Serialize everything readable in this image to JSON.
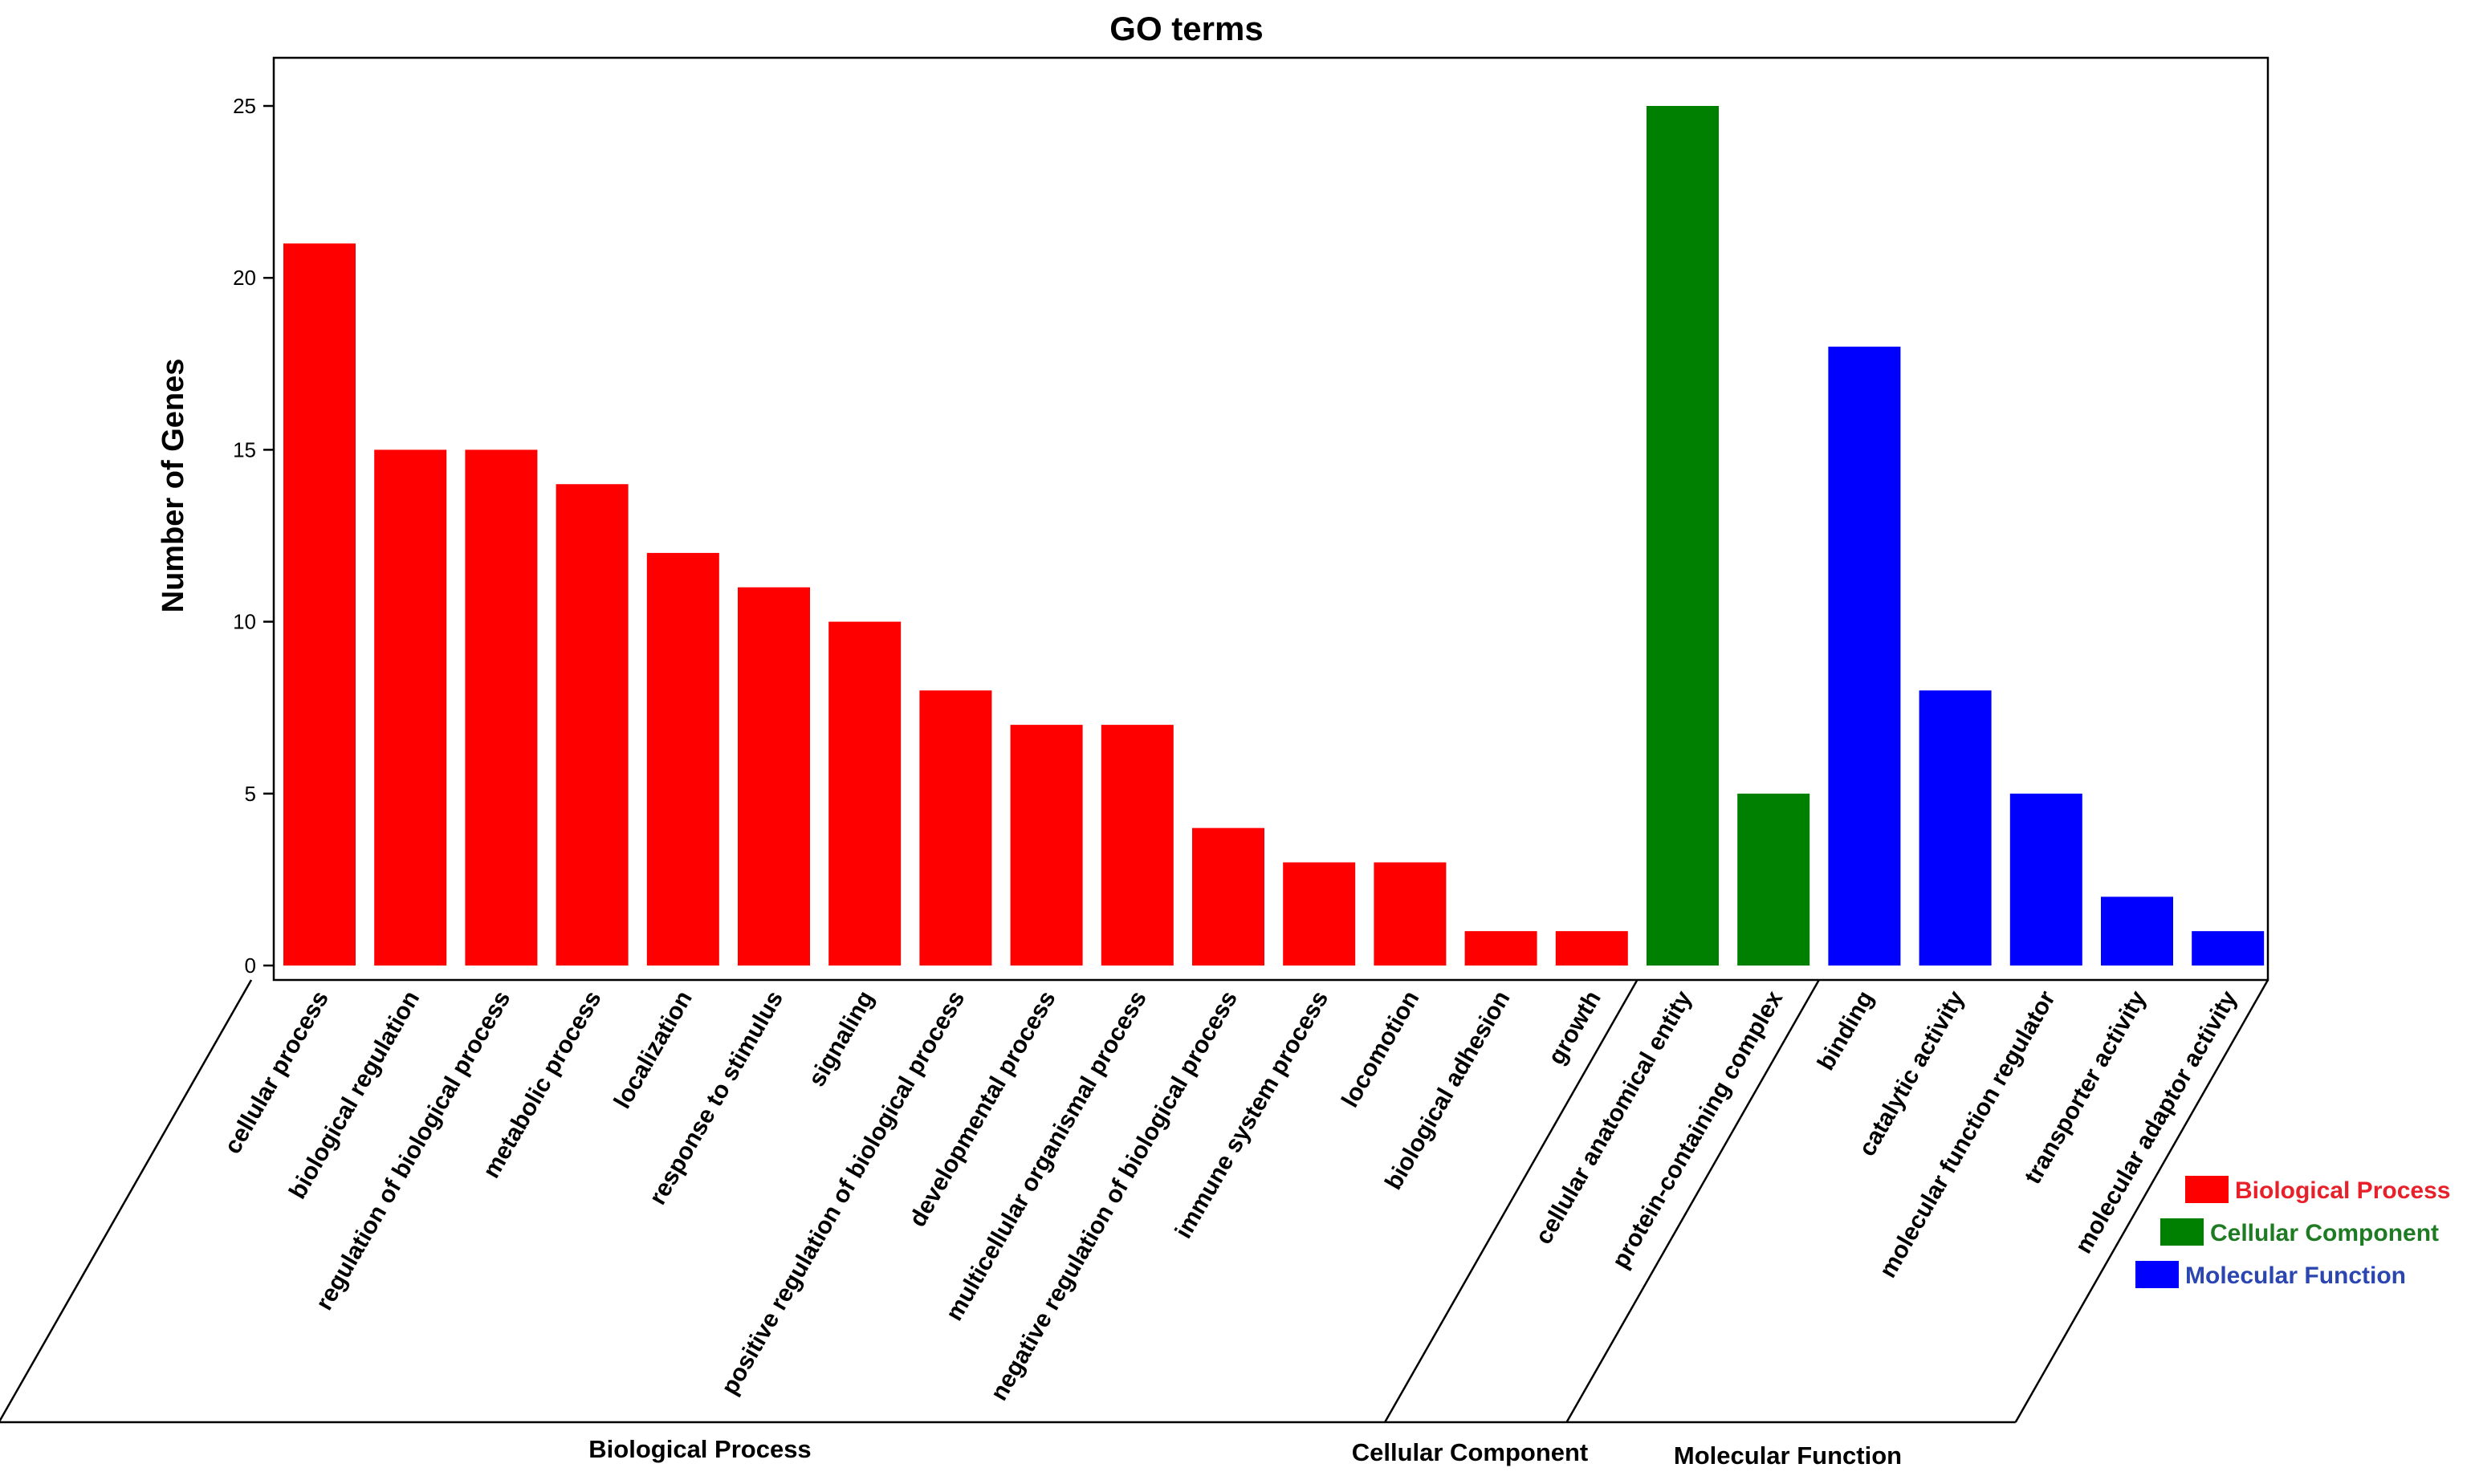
{
  "chart_data": {
    "type": "bar",
    "title": "GO terms",
    "ylabel": "Number of Genes",
    "xlabel": "",
    "ylim": [
      0,
      26.3
    ],
    "yticks": [
      0,
      5,
      10,
      15,
      20,
      25
    ],
    "grid": false,
    "legend_position": "right",
    "colors": {
      "Biological Process": "#ff0000",
      "Cellular Component": "#008000",
      "Molecular Function": "#0000ff",
      "bp_label": "#e8202a",
      "cc_label": "#1e7b24",
      "mf_label": "#2b46b0"
    },
    "categories": [
      "cellular process",
      "biological regulation",
      "regulation of biological process",
      "metabolic process",
      "localization",
      "response to stimulus",
      "signaling",
      "positive regulation of biological process",
      "developmental process",
      "multicellular organismal process",
      "negative regulation of biological process",
      "immune system process",
      "locomotion",
      "biological adhesion",
      "growth",
      "cellular anatomical entity",
      "protein-containing complex",
      "binding",
      "catalytic activity",
      "molecular function regulator",
      "transporter activity",
      "molecular adaptor activity"
    ],
    "values": [
      21,
      15,
      15,
      14,
      12,
      11,
      10,
      8,
      7,
      7,
      4,
      3,
      3,
      1,
      1,
      25,
      5,
      18,
      8,
      5,
      2,
      1
    ],
    "groups": [
      {
        "name": "Biological Process",
        "start": 0,
        "count": 15
      },
      {
        "name": "Cellular Component",
        "start": 15,
        "count": 2
      },
      {
        "name": "Molecular Function",
        "start": 17,
        "count": 5
      }
    ],
    "legend": [
      "Biological Process",
      "Cellular Component",
      "Molecular Function"
    ]
  }
}
